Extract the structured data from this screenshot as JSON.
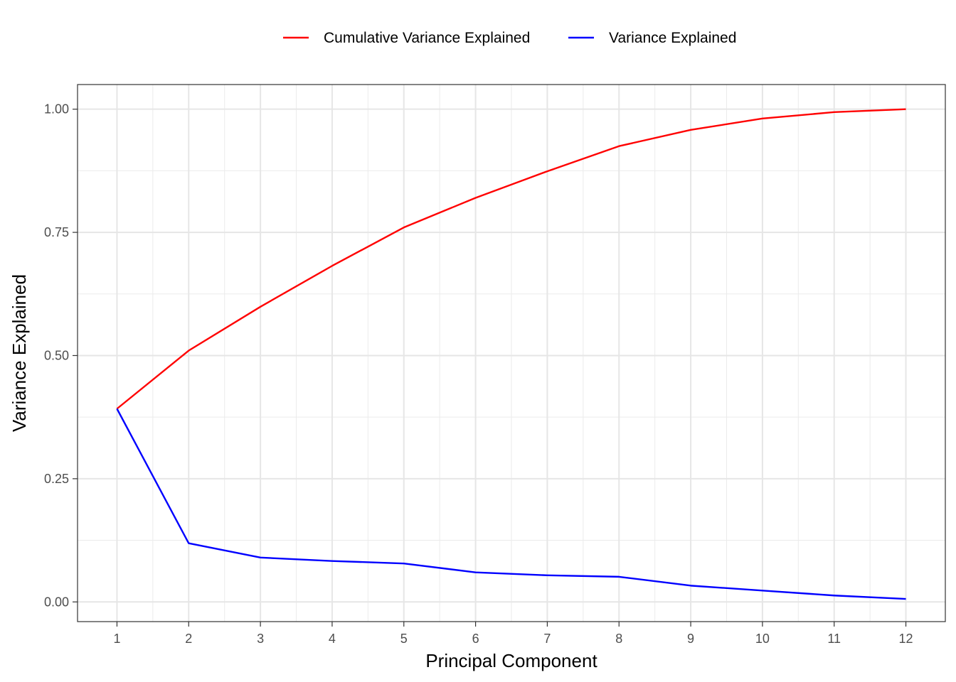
{
  "chart_data": {
    "type": "line",
    "title": "",
    "xlabel": "Principal Component",
    "ylabel": "Variance Explained",
    "x": [
      1,
      2,
      3,
      4,
      5,
      6,
      7,
      8,
      9,
      10,
      11,
      12
    ],
    "xticks": [
      "1",
      "2",
      "3",
      "4",
      "5",
      "6",
      "7",
      "8",
      "9",
      "10",
      "11",
      "12"
    ],
    "xlim": [
      0.45,
      12.55
    ],
    "ylim": [
      -0.04,
      1.05
    ],
    "yticks": [
      0.0,
      0.25,
      0.5,
      0.75,
      1.0
    ],
    "ytick_labels": [
      "0.00",
      "0.25",
      "0.50",
      "0.75",
      "1.00"
    ],
    "grid": true,
    "legend_position": "top",
    "series": [
      {
        "name": "Cumulative Variance Explained",
        "color": "#ff0000",
        "values": [
          0.392,
          0.51,
          0.599,
          0.682,
          0.76,
          0.82,
          0.874,
          0.925,
          0.958,
          0.981,
          0.994,
          1.0
        ]
      },
      {
        "name": "Variance Explained",
        "color": "#0000ff",
        "values": [
          0.392,
          0.119,
          0.09,
          0.083,
          0.078,
          0.06,
          0.054,
          0.051,
          0.033,
          0.023,
          0.013,
          0.006
        ]
      }
    ]
  }
}
